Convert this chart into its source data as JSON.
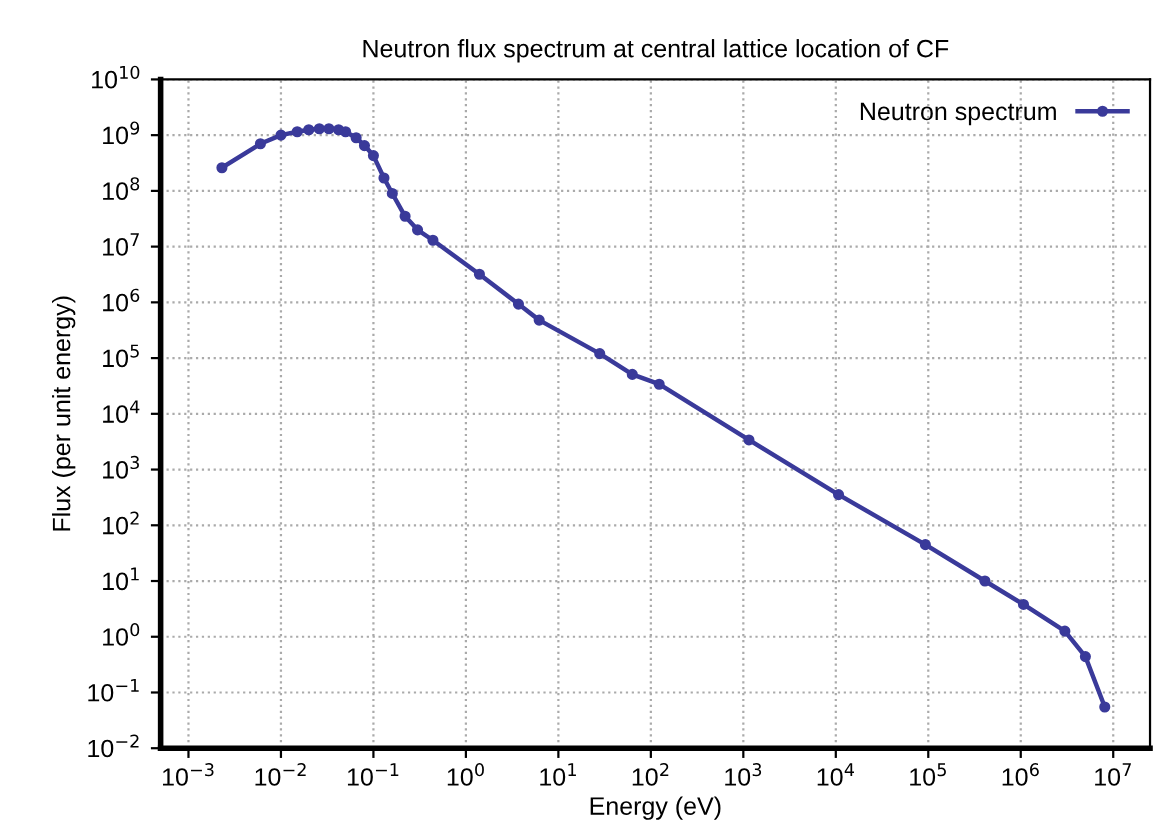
{
  "chart_data": {
    "type": "line",
    "title": "Neutron flux spectrum at central lattice location of CF",
    "xlabel": "Energy (eV)",
    "ylabel": "Flux (per unit energy)",
    "log": "xy",
    "grid": true,
    "legend": "top right",
    "marker": "circle",
    "line_style": "solid",
    "xlim": [
      0.0005,
      25000000
    ],
    "ylim": [
      0.01,
      10000000000
    ],
    "xticks": [
      {
        "value": 0.001,
        "label": "10$^{−3}$"
      },
      {
        "value": 0.01,
        "label": "10$^{−2}$"
      },
      {
        "value": 0.1,
        "label": "10$^{−1}$"
      },
      {
        "value": 1,
        "label": "10$^{0}$"
      },
      {
        "value": 10,
        "label": "10$^{1}$"
      },
      {
        "value": 100,
        "label": "10$^{2}$"
      },
      {
        "value": 1000,
        "label": "10$^{3}$"
      },
      {
        "value": 10000,
        "label": "10$^{4}$"
      },
      {
        "value": 100000,
        "label": "10$^{5}$"
      },
      {
        "value": 1000000,
        "label": "10$^{6}$"
      },
      {
        "value": 10000000,
        "label": "10$^{7}$"
      }
    ],
    "yticks": [
      {
        "value": 0.01,
        "label": "10$^{−2}$"
      },
      {
        "value": 0.1,
        "label": "10$^{−1}$"
      },
      {
        "value": 1,
        "label": "10$^{0}$"
      },
      {
        "value": 10,
        "label": "10$^{1}$"
      },
      {
        "value": 100,
        "label": "10$^{2}$"
      },
      {
        "value": 1000,
        "label": "10$^{3}$"
      },
      {
        "value": 10000,
        "label": "10$^{4}$"
      },
      {
        "value": 100000,
        "label": "10$^{5}$"
      },
      {
        "value": 1000000,
        "label": "10$^{6}$"
      },
      {
        "value": 10000000,
        "label": "10$^{7}$"
      },
      {
        "value": 100000000,
        "label": "10$^{8}$"
      },
      {
        "value": 1000000000,
        "label": "10$^{9}$"
      },
      {
        "value": 10000000000,
        "label": "10$^{10}$"
      }
    ],
    "series": [
      {
        "name": "Neutron spectrum",
        "color": "#3a3a9a",
        "x": [
          0.0023,
          0.006,
          0.01,
          0.015,
          0.02,
          0.026,
          0.033,
          0.042,
          0.05,
          0.065,
          0.08,
          0.1,
          0.13,
          0.16,
          0.22,
          0.3,
          0.44,
          1.4,
          3.7,
          6.2,
          28,
          63,
          123,
          1150,
          10700,
          93000,
          410000,
          1070000,
          3000000,
          5000000,
          8100000
        ],
        "values": [
          260000000,
          700000000,
          1000000000,
          1150000000,
          1250000000,
          1300000000,
          1300000000,
          1250000000,
          1150000000,
          900000000,
          650000000,
          430000000,
          170000000,
          90000000,
          35000000,
          20000000,
          13000000,
          3200000,
          930000,
          480000,
          120000,
          51000,
          34000,
          3400,
          355,
          45,
          10,
          3.8,
          1.26,
          0.44,
          0.055
        ]
      }
    ]
  }
}
